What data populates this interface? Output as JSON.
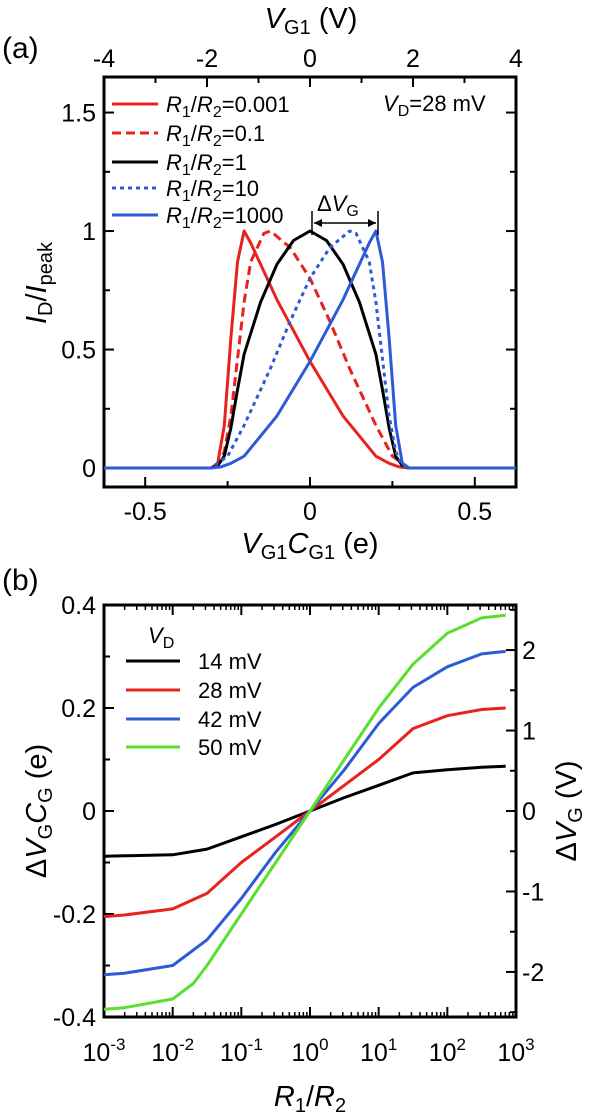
{
  "chart_data": [
    {
      "panel_label": "(a)",
      "type": "line",
      "xlabel": "V_G1 C_G1 (e)",
      "x2label": "V_G1 (V)",
      "ylabel": "I_D/I_peak",
      "xlim": [
        -0.625,
        0.625
      ],
      "ylim": [
        -0.08,
        1.65
      ],
      "x2lim": [
        -4,
        4
      ],
      "xticks": [
        "-0.5",
        "0",
        "0.5"
      ],
      "yticks": [
        "0",
        "0.5",
        "1",
        "1.5"
      ],
      "x2ticks": [
        "-4",
        "-2",
        "0",
        "2",
        "4"
      ],
      "annotation_vd": "V_D=28 mV",
      "annotation_dvg": "ΔV_G",
      "legend_position": "top-left",
      "series": [
        {
          "name": "R1/R2=0.001",
          "color": "#e8231f",
          "dash": "solid",
          "x": [
            -0.625,
            -0.3,
            -0.28,
            -0.26,
            -0.24,
            -0.22,
            -0.2,
            -0.18,
            -0.1,
            0,
            0.1,
            0.2,
            0.24,
            0.27,
            0.3,
            0.625
          ],
          "y": [
            0,
            0,
            0.02,
            0.18,
            0.55,
            0.87,
            1.0,
            0.95,
            0.71,
            0.45,
            0.22,
            0.05,
            0.02,
            0.005,
            0,
            0
          ]
        },
        {
          "name": "R1/R2=0.1",
          "color": "#e8231f",
          "dash": "dashed",
          "x": [
            -0.625,
            -0.3,
            -0.28,
            -0.26,
            -0.24,
            -0.22,
            -0.2,
            -0.18,
            -0.14,
            -0.12,
            -0.06,
            0,
            0.06,
            0.12,
            0.2,
            0.25,
            0.3,
            0.625
          ],
          "y": [
            0,
            0,
            0.01,
            0.07,
            0.22,
            0.46,
            0.7,
            0.87,
            0.99,
            1.0,
            0.93,
            0.8,
            0.62,
            0.42,
            0.18,
            0.05,
            0,
            0
          ]
        },
        {
          "name": "R1/R2=1",
          "color": "#000000",
          "dash": "solid",
          "x": [
            -0.625,
            -0.3,
            -0.28,
            -0.26,
            -0.24,
            -0.22,
            -0.2,
            -0.15,
            -0.1,
            -0.05,
            0,
            0.05,
            0.1,
            0.15,
            0.2,
            0.22,
            0.24,
            0.26,
            0.28,
            0.3,
            0.625
          ],
          "y": [
            0,
            0,
            0.01,
            0.05,
            0.17,
            0.33,
            0.48,
            0.7,
            0.86,
            0.96,
            1.0,
            0.96,
            0.86,
            0.7,
            0.48,
            0.33,
            0.17,
            0.05,
            0.01,
            0,
            0
          ]
        },
        {
          "name": "R1/R2=10",
          "color": "#2d5bd8",
          "dash": "dotted",
          "x": [
            -0.625,
            -0.3,
            -0.25,
            -0.2,
            -0.12,
            -0.06,
            0,
            0.06,
            0.12,
            0.14,
            0.18,
            0.2,
            0.22,
            0.24,
            0.26,
            0.28,
            0.3,
            0.625
          ],
          "y": [
            0,
            0,
            0.05,
            0.18,
            0.42,
            0.62,
            0.8,
            0.93,
            1.0,
            0.99,
            0.87,
            0.7,
            0.46,
            0.22,
            0.07,
            0.01,
            0,
            0
          ]
        },
        {
          "name": "R1/R2=1000",
          "color": "#2d5bd8",
          "dash": "solid",
          "x": [
            -0.625,
            -0.3,
            -0.27,
            -0.24,
            -0.2,
            -0.1,
            0,
            0.1,
            0.18,
            0.2,
            0.22,
            0.24,
            0.26,
            0.28,
            0.3,
            0.625
          ],
          "y": [
            0,
            0,
            0.005,
            0.02,
            0.05,
            0.22,
            0.45,
            0.71,
            0.95,
            1.0,
            0.87,
            0.55,
            0.18,
            0.02,
            0,
            0
          ]
        }
      ]
    },
    {
      "panel_label": "(b)",
      "type": "line",
      "xlabel": "R_1/R_2",
      "ylabel": "ΔV_G C_G (e)",
      "y2label": "ΔV_G (V)",
      "xscale": "log",
      "xlim": [
        -3,
        3
      ],
      "ylim": [
        -0.4,
        0.4
      ],
      "y2lim": [
        -2.56,
        2.56
      ],
      "xticks": [
        "10^-3",
        "10^-2",
        "10^-1",
        "10^0",
        "10^1",
        "10^2",
        "10^3"
      ],
      "yticks": [
        "-0.4",
        "-0.2",
        "0",
        "0.2",
        "0.4"
      ],
      "y2ticks": [
        "-2",
        "-1",
        "0",
        "1",
        "2"
      ],
      "legend_title": "V_D",
      "legend_position": "top-left",
      "series": [
        {
          "name": "14 mV",
          "color": "#000000",
          "x": [
            -3,
            -2.7,
            -2,
            -1.5,
            -1,
            -0.5,
            0,
            0.5,
            1,
            1.5,
            2,
            2.5,
            2.85
          ],
          "y": [
            -0.088,
            -0.087,
            -0.085,
            -0.074,
            -0.05,
            -0.026,
            0,
            0.026,
            0.05,
            0.074,
            0.08,
            0.085,
            0.087
          ]
        },
        {
          "name": "28 mV",
          "color": "#e8231f",
          "x": [
            -3,
            -2.7,
            -2,
            -1.5,
            -1,
            -0.5,
            0,
            0.5,
            1,
            1.5,
            2,
            2.5,
            2.85
          ],
          "y": [
            -0.205,
            -0.202,
            -0.19,
            -0.16,
            -0.1,
            -0.05,
            0,
            0.05,
            0.1,
            0.16,
            0.185,
            0.197,
            0.2
          ]
        },
        {
          "name": "42 mV",
          "color": "#2d5bd8",
          "x": [
            -3,
            -2.7,
            -2,
            -1.5,
            -1,
            -0.5,
            0,
            0.5,
            1,
            1.5,
            2,
            2.5,
            2.85
          ],
          "y": [
            -0.318,
            -0.315,
            -0.3,
            -0.25,
            -0.17,
            -0.08,
            0,
            0.08,
            0.17,
            0.24,
            0.28,
            0.305,
            0.31
          ]
        },
        {
          "name": "50 mV",
          "color": "#59e02f",
          "x": [
            -3,
            -2.7,
            -2,
            -1.7,
            -1.5,
            -1,
            -0.5,
            0,
            0.5,
            1,
            1.5,
            2,
            2.5,
            2.85
          ],
          "y": [
            -0.385,
            -0.382,
            -0.365,
            -0.335,
            -0.3,
            -0.2,
            -0.1,
            0,
            0.1,
            0.2,
            0.285,
            0.345,
            0.375,
            0.38
          ]
        }
      ]
    }
  ]
}
